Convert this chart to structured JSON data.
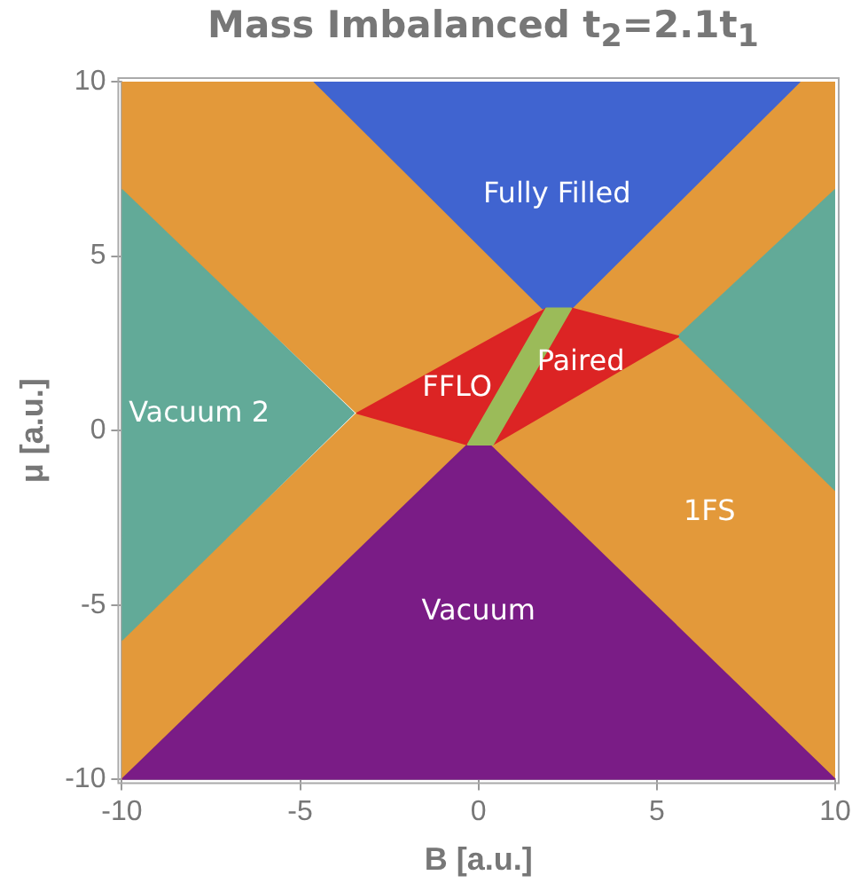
{
  "chart_data": {
    "type": "area",
    "title": "Mass Imbalanced t$_{2}$=2.1t$_{1}$",
    "xlabel": "B [a.u.]",
    "ylabel": "μ [a.u.]",
    "xlim": [
      -10,
      10
    ],
    "ylim": [
      -10,
      10
    ],
    "xticks": [
      -10,
      -5,
      0,
      5,
      10
    ],
    "yticks": [
      -10,
      -5,
      0,
      5,
      10
    ],
    "series": [
      {
        "color": "#e3993a",
        "x": [
          -10,
          -4.6,
          1.8,
          -3.4,
          -10
        ],
        "values": [
          10,
          10,
          3.5,
          0.5,
          6.9
        ]
      },
      {
        "color": "#e3993a",
        "x": [
          -10,
          -0.3,
          -3.4,
          -10
        ],
        "values": [
          -10,
          -0.4,
          0.5,
          -6.0
        ]
      },
      {
        "color": "#e3993a",
        "x": [
          2.6,
          9.0,
          10,
          10,
          5.6
        ],
        "values": [
          3.5,
          10,
          10,
          6.9,
          2.7
        ]
      },
      {
        "name": "1FS",
        "color": "#e3993a",
        "x": [
          0.3,
          5.6,
          10,
          10
        ],
        "values": [
          -0.4,
          2.7,
          -1.7,
          -10
        ]
      },
      {
        "name": "Fully Filled",
        "color": "#4064d0",
        "x": [
          -4.6,
          9.0,
          2.6,
          1.8
        ],
        "values": [
          10,
          10,
          3.5,
          3.5
        ]
      },
      {
        "name": "Vacuum 2",
        "color": "#62aa98",
        "x": [
          -10,
          -3.5,
          -10
        ],
        "values": [
          6.9,
          0.5,
          -6.0
        ]
      },
      {
        "color": "#62aa98",
        "x": [
          10,
          5.6,
          10
        ],
        "values": [
          6.9,
          2.7,
          -1.7
        ]
      },
      {
        "name": "Vacuum",
        "color": "#7a1c86",
        "x": [
          -10,
          -0.3,
          0.3,
          10
        ],
        "values": [
          -10,
          -0.4,
          -0.4,
          -10
        ]
      },
      {
        "name": "FFLO",
        "color": "#dc2424",
        "x": [
          -3.4,
          1.9,
          -0.3
        ],
        "values": [
          0.5,
          3.5,
          -0.4
        ]
      },
      {
        "name": "Paired",
        "color": "#dc2424",
        "x": [
          2.6,
          5.6,
          0.4
        ],
        "values": [
          3.5,
          2.7,
          -0.4
        ]
      },
      {
        "color": "#9bbb59",
        "x": [
          -0.3,
          0.4,
          2.6,
          1.9
        ],
        "values": [
          -0.4,
          -0.4,
          3.5,
          3.5
        ]
      }
    ]
  }
}
